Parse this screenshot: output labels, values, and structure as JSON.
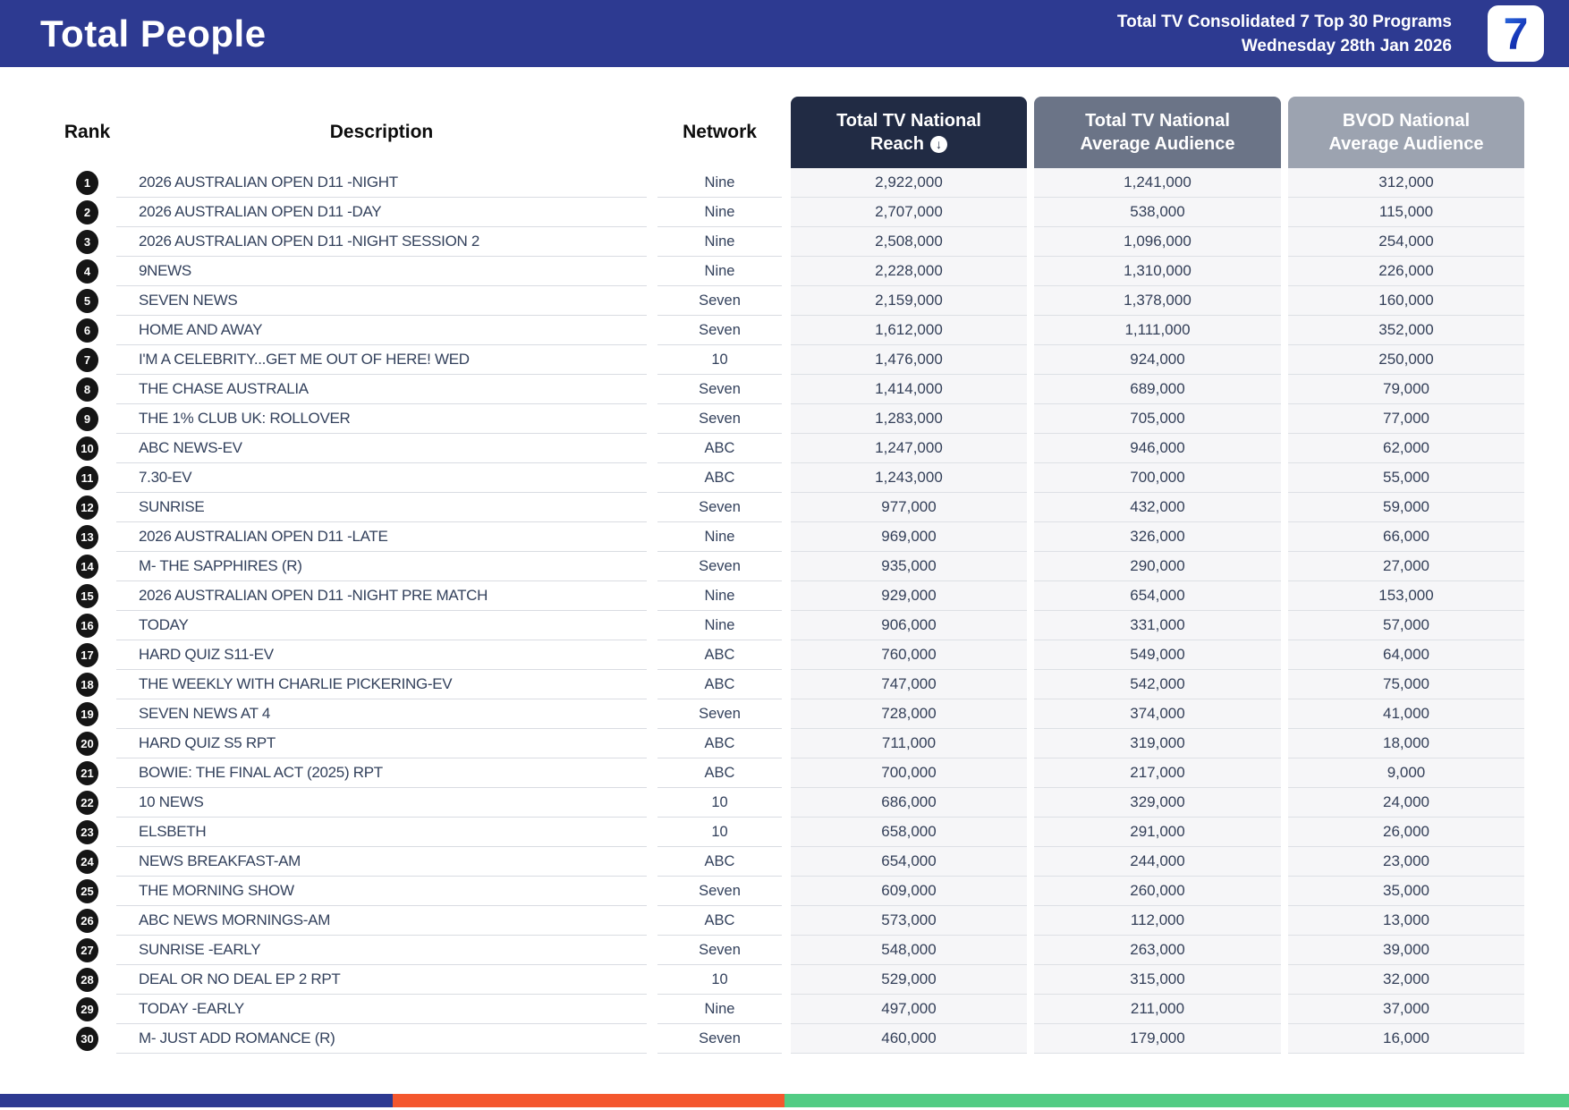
{
  "banner": {
    "title": "Total People",
    "subtitle_line1": "Total TV Consolidated 7 Top 30 Programs",
    "subtitle_line2": "Wednesday 28th Jan 2026",
    "logo_glyph": "7",
    "bg_color": "#2D3A91"
  },
  "table": {
    "columns": {
      "rank_label": "Rank",
      "description_label": "Description",
      "network_label": "Network",
      "reach": {
        "line1": "Total TV National",
        "line2": "Reach",
        "sort_icon": "down-arrow",
        "bg": "#212B44"
      },
      "avg": {
        "line1": "Total TV National",
        "line2": "Average Audience",
        "bg": "#6B7487"
      },
      "bvod": {
        "line1": "BVOD National",
        "line2": "Average Audience",
        "bg": "#9CA3B0"
      }
    },
    "sort_arrow_glyph": "↓",
    "rows": [
      {
        "rank": "1",
        "description": "2026 AUSTRALIAN OPEN D11 -NIGHT",
        "network": "Nine",
        "reach": "2,922,000",
        "avg": "1,241,000",
        "bvod": "312,000"
      },
      {
        "rank": "2",
        "description": "2026 AUSTRALIAN OPEN D11 -DAY",
        "network": "Nine",
        "reach": "2,707,000",
        "avg": "538,000",
        "bvod": "115,000"
      },
      {
        "rank": "3",
        "description": "2026 AUSTRALIAN OPEN D11 -NIGHT SESSION 2",
        "network": "Nine",
        "reach": "2,508,000",
        "avg": "1,096,000",
        "bvod": "254,000"
      },
      {
        "rank": "4",
        "description": "9NEWS",
        "network": "Nine",
        "reach": "2,228,000",
        "avg": "1,310,000",
        "bvod": "226,000"
      },
      {
        "rank": "5",
        "description": "SEVEN NEWS",
        "network": "Seven",
        "reach": "2,159,000",
        "avg": "1,378,000",
        "bvod": "160,000"
      },
      {
        "rank": "6",
        "description": "HOME AND AWAY",
        "network": "Seven",
        "reach": "1,612,000",
        "avg": "1,111,000",
        "bvod": "352,000"
      },
      {
        "rank": "7",
        "description": "I'M A CELEBRITY...GET ME OUT OF HERE! WED",
        "network": "10",
        "reach": "1,476,000",
        "avg": "924,000",
        "bvod": "250,000"
      },
      {
        "rank": "8",
        "description": "THE CHASE AUSTRALIA",
        "network": "Seven",
        "reach": "1,414,000",
        "avg": "689,000",
        "bvod": "79,000"
      },
      {
        "rank": "9",
        "description": "THE 1% CLUB UK: ROLLOVER",
        "network": "Seven",
        "reach": "1,283,000",
        "avg": "705,000",
        "bvod": "77,000"
      },
      {
        "rank": "10",
        "description": "ABC NEWS-EV",
        "network": "ABC",
        "reach": "1,247,000",
        "avg": "946,000",
        "bvod": "62,000"
      },
      {
        "rank": "11",
        "description": "7.30-EV",
        "network": "ABC",
        "reach": "1,243,000",
        "avg": "700,000",
        "bvod": "55,000"
      },
      {
        "rank": "12",
        "description": "SUNRISE",
        "network": "Seven",
        "reach": "977,000",
        "avg": "432,000",
        "bvod": "59,000"
      },
      {
        "rank": "13",
        "description": "2026 AUSTRALIAN OPEN D11 -LATE",
        "network": "Nine",
        "reach": "969,000",
        "avg": "326,000",
        "bvod": "66,000"
      },
      {
        "rank": "14",
        "description": "M- THE SAPPHIRES (R)",
        "network": "Seven",
        "reach": "935,000",
        "avg": "290,000",
        "bvod": "27,000"
      },
      {
        "rank": "15",
        "description": "2026 AUSTRALIAN OPEN D11 -NIGHT PRE MATCH",
        "network": "Nine",
        "reach": "929,000",
        "avg": "654,000",
        "bvod": "153,000"
      },
      {
        "rank": "16",
        "description": "TODAY",
        "network": "Nine",
        "reach": "906,000",
        "avg": "331,000",
        "bvod": "57,000"
      },
      {
        "rank": "17",
        "description": "HARD QUIZ S11-EV",
        "network": "ABC",
        "reach": "760,000",
        "avg": "549,000",
        "bvod": "64,000"
      },
      {
        "rank": "18",
        "description": "THE WEEKLY WITH CHARLIE PICKERING-EV",
        "network": "ABC",
        "reach": "747,000",
        "avg": "542,000",
        "bvod": "75,000"
      },
      {
        "rank": "19",
        "description": "SEVEN NEWS AT 4",
        "network": "Seven",
        "reach": "728,000",
        "avg": "374,000",
        "bvod": "41,000"
      },
      {
        "rank": "20",
        "description": "HARD QUIZ S5 RPT",
        "network": "ABC",
        "reach": "711,000",
        "avg": "319,000",
        "bvod": "18,000"
      },
      {
        "rank": "21",
        "description": "BOWIE: THE FINAL ACT (2025) RPT",
        "network": "ABC",
        "reach": "700,000",
        "avg": "217,000",
        "bvod": "9,000"
      },
      {
        "rank": "22",
        "description": "10 NEWS",
        "network": "10",
        "reach": "686,000",
        "avg": "329,000",
        "bvod": "24,000"
      },
      {
        "rank": "23",
        "description": "ELSBETH",
        "network": "10",
        "reach": "658,000",
        "avg": "291,000",
        "bvod": "26,000"
      },
      {
        "rank": "24",
        "description": "NEWS BREAKFAST-AM",
        "network": "ABC",
        "reach": "654,000",
        "avg": "244,000",
        "bvod": "23,000"
      },
      {
        "rank": "25",
        "description": "THE MORNING SHOW",
        "network": "Seven",
        "reach": "609,000",
        "avg": "260,000",
        "bvod": "35,000"
      },
      {
        "rank": "26",
        "description": "ABC NEWS MORNINGS-AM",
        "network": "ABC",
        "reach": "573,000",
        "avg": "112,000",
        "bvod": "13,000"
      },
      {
        "rank": "27",
        "description": "SUNRISE -EARLY",
        "network": "Seven",
        "reach": "548,000",
        "avg": "263,000",
        "bvod": "39,000"
      },
      {
        "rank": "28",
        "description": "DEAL OR NO DEAL EP 2 RPT",
        "network": "10",
        "reach": "529,000",
        "avg": "315,000",
        "bvod": "32,000"
      },
      {
        "rank": "29",
        "description": "TODAY -EARLY",
        "network": "Nine",
        "reach": "497,000",
        "avg": "211,000",
        "bvod": "37,000"
      },
      {
        "rank": "30",
        "description": "M- JUST ADD ROMANCE (R)",
        "network": "Seven",
        "reach": "460,000",
        "avg": "179,000",
        "bvod": "16,000"
      }
    ]
  },
  "footer_bar": {
    "segments": [
      {
        "name": "blue",
        "color": "#2D3A91",
        "width_pct": 25
      },
      {
        "name": "orange",
        "color": "#F4572E",
        "width_pct": 25
      },
      {
        "name": "green",
        "color": "#52CC84",
        "width_pct": 50
      }
    ]
  }
}
